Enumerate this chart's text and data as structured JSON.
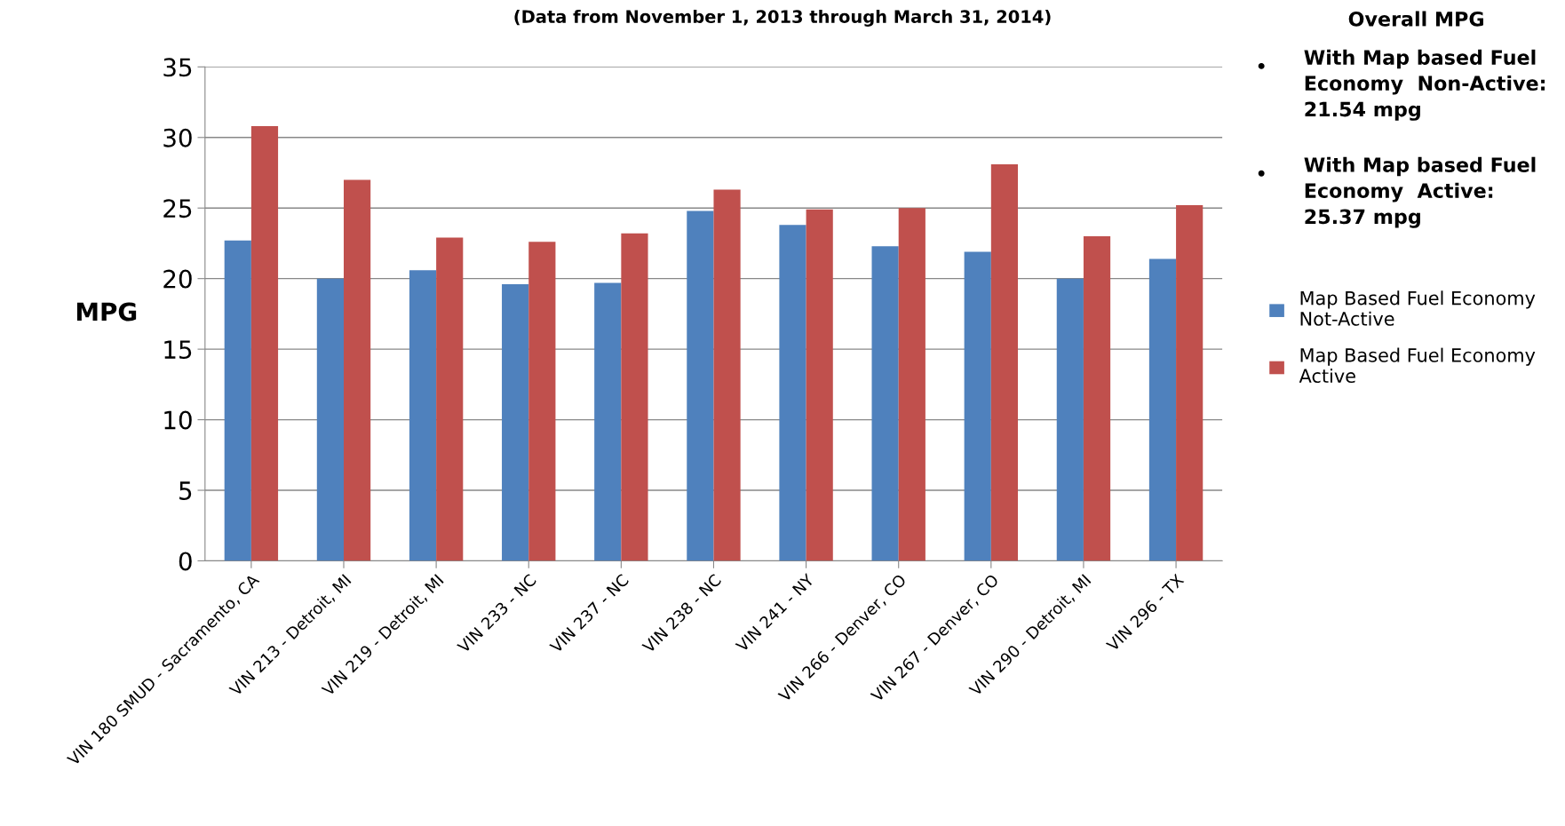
{
  "chart_data": {
    "type": "bar",
    "subtitle": "(Data from November 1, 2013 through March 31, 2014)",
    "ylabel": "MPG",
    "categories": [
      "VIN 180 SMUD - Sacramento, CA",
      "VIN 213 - Detroit, MI",
      "VIN 219 - Detroit, MI",
      "VIN 233 - NC",
      "VIN 237 - NC",
      "VIN 238 - NC",
      "VIN 241 - NY",
      "VIN 266 - Denver, CO",
      "VIN 267 - Denver, CO",
      "VIN 290 - Detroit, MI",
      "VIN 296 - TX"
    ],
    "series": [
      {
        "name": "Map Based Fuel Economy\nNot-Active",
        "color": "#4f81bd",
        "values": [
          22.7,
          20.0,
          20.6,
          19.6,
          19.7,
          24.8,
          23.8,
          22.3,
          21.9,
          20.0,
          21.4
        ]
      },
      {
        "name": "Map Based Fuel Economy\nActive",
        "color": "#c0504d",
        "values": [
          30.8,
          27.0,
          22.9,
          22.6,
          23.2,
          26.3,
          24.9,
          25.0,
          28.1,
          23.0,
          25.2
        ]
      }
    ],
    "ylim": [
      0,
      35
    ],
    "yticks": [
      0,
      5,
      10,
      15,
      20,
      25,
      30,
      35
    ],
    "grid": "y",
    "legend": "right",
    "annotations": [
      "Overall MPG",
      "With Map based Fuel\nEconomy  Non-Active:\n21.54 mpg",
      "With Map based Fuel\nEconomy  Active:\n25.37 mpg"
    ]
  }
}
